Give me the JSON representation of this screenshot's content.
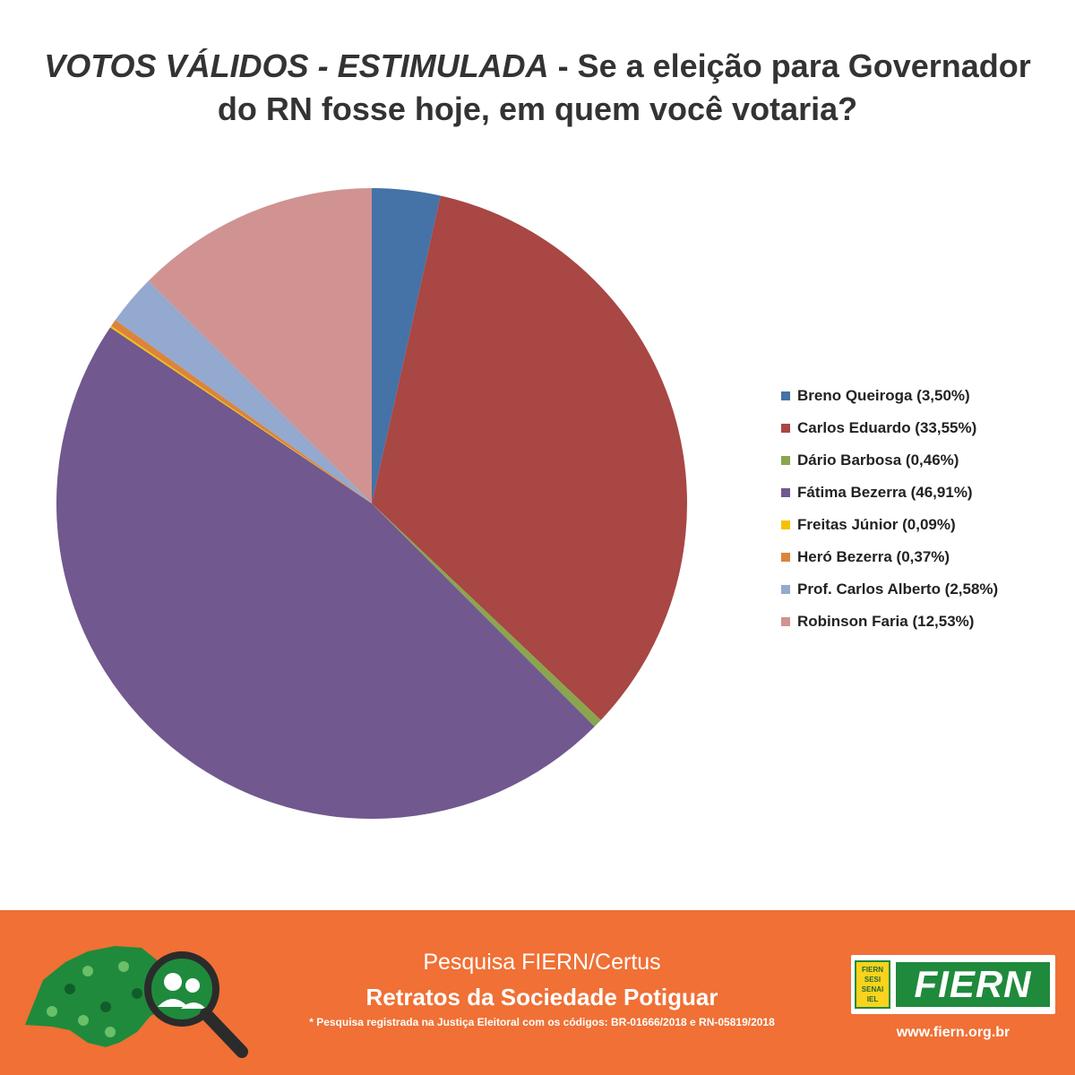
{
  "title": {
    "emphasis": "VOTOS VÁLIDOS - ESTIMULADA",
    "rest_line1": " - Se a eleição para Governador",
    "line2": "do RN fosse hoje, em quem você votaria?"
  },
  "chart_data": {
    "type": "pie",
    "title": "VOTOS VÁLIDOS - ESTIMULADA - Se a eleição para Governador do RN fosse hoje, em quem você votaria?",
    "legend_position": "right",
    "slices": [
      {
        "label": "Breno Queiroga (3,50%)",
        "value": 3.5,
        "color": "#4572a7"
      },
      {
        "label": "Carlos Eduardo (33,55%)",
        "value": 33.55,
        "color": "#a84744"
      },
      {
        "label": "Dário Barbosa (0,46%)",
        "value": 0.46,
        "color": "#89a54e"
      },
      {
        "label": "Fátima Bezerra (46,91%)",
        "value": 46.91,
        "color": "#71588f"
      },
      {
        "label": "Freitas Júnior (0,09%)",
        "value": 0.09,
        "color": "#f5c200"
      },
      {
        "label": "Heró Bezerra (0,37%)",
        "value": 0.37,
        "color": "#db843d"
      },
      {
        "label": "Prof. Carlos Alberto (2,58%)",
        "value": 2.58,
        "color": "#93a9cf"
      },
      {
        "label": "Robinson Faria (12,53%)",
        "value": 12.53,
        "color": "#d09392"
      }
    ]
  },
  "footer": {
    "subtitle": "Pesquisa FIERN/Certus",
    "main": "Retratos da Sociedade Potiguar",
    "note": "* Pesquisa registrada na Justiça Eleitoral com os códigos: BR-01666/2018 e RN-05819/2018",
    "logo_box_lines": [
      "FIERN",
      "SESI",
      "SENAI",
      "IEL"
    ],
    "logo_text": "FIERN",
    "url": "www.fiern.org.br",
    "background_color": "#f07035",
    "brand_green": "#1f8a3c"
  }
}
